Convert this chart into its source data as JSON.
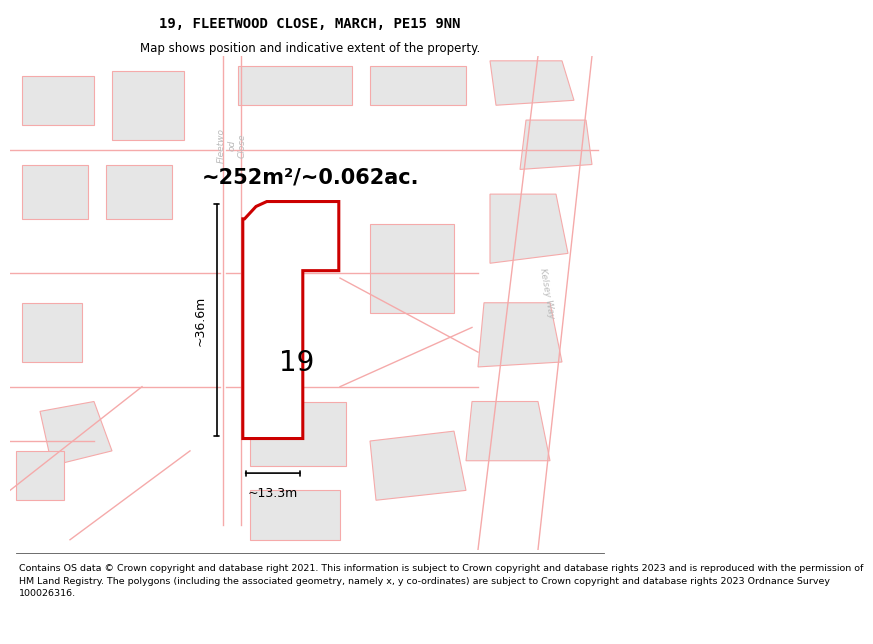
{
  "title": "19, FLEETWOOD CLOSE, MARCH, PE15 9NN",
  "subtitle": "Map shows position and indicative extent of the property.",
  "footer": "Contains OS data © Crown copyright and database right 2021. This information is subject to Crown copyright and database rights 2023 and is reproduced with the permission of\nHM Land Registry. The polygons (including the associated geometry, namely x, y co-ordinates) are subject to Crown copyright and database rights 2023 Ordnance Survey\n100026316.",
  "area_label": "~252m²/~0.062ac.",
  "width_label": "~13.3m",
  "height_label": "~36.6m",
  "number_label": "19",
  "map_bg": "#f7f7f7",
  "building_fill": "#e6e6e6",
  "building_stroke": "#f5aaaa",
  "road_color": "#f5aaaa",
  "highlight_color": "#cc0000",
  "highlight_fill": "#ffffff",
  "title_fontsize": 10,
  "subtitle_fontsize": 8.5,
  "footer_fontsize": 6.8,
  "area_fontsize": 15,
  "number_fontsize": 20,
  "dim_fontsize": 9
}
